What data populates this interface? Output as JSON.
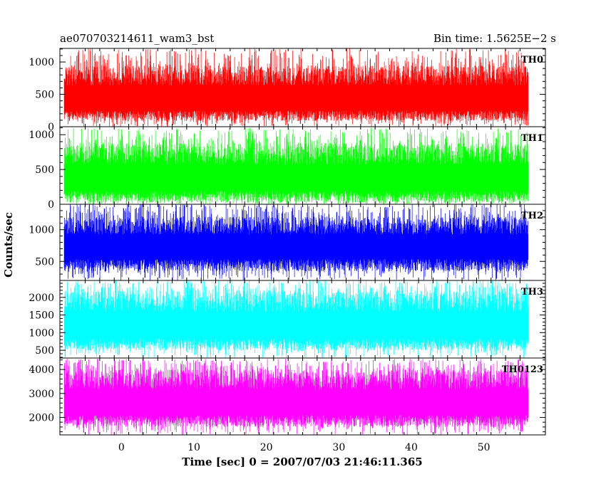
{
  "header": {
    "left": "ae070703214611_wam3_bst",
    "right": "Bin time: 1.5625E−2 s"
  },
  "chart_data": {
    "type": "line",
    "title": "ae070703214611_wam3_bst",
    "subtitle": "Bin time: 1.5625E−2 s",
    "xlabel": "Time [sec] 0 = 2007/07/03 21:46:11.365",
    "ylabel": "Counts/sec",
    "xlim": [
      -8.5,
      58.5
    ],
    "data_x_range": [
      -7.9,
      56.1
    ],
    "bin_time_s": 0.015625,
    "x_ticks": [
      0,
      10,
      20,
      30,
      40,
      50
    ],
    "x_tick_labels": [
      "0",
      "10",
      "20",
      "30",
      "40",
      "50"
    ],
    "grid": false,
    "panels": [
      {
        "name": "TH0",
        "color": "#ff0000",
        "ylim": [
          0,
          1210
        ],
        "baseline": 380,
        "low": 90,
        "high": 950,
        "peak": 1210,
        "y_ticks": [
          0,
          500,
          1000
        ],
        "y_tick_labels": [
          "0",
          "500",
          "1000"
        ]
      },
      {
        "name": "TH1",
        "color": "#00ff00",
        "ylim": [
          0,
          1115
        ],
        "baseline": 320,
        "low": 30,
        "high": 880,
        "peak": 1100,
        "y_ticks": [
          0,
          500,
          1000
        ],
        "y_tick_labels": [
          "0",
          "500",
          "1000"
        ]
      },
      {
        "name": "TH2",
        "color": "#0000ff",
        "ylim": [
          200,
          1400
        ],
        "baseline": 700,
        "low": 340,
        "high": 1200,
        "peak": 1420,
        "y_ticks": [
          500,
          1000
        ],
        "y_tick_labels": [
          "500",
          "1000"
        ]
      },
      {
        "name": "TH3",
        "color": "#00ffff",
        "ylim": [
          280,
          2480
        ],
        "baseline": 1100,
        "low": 500,
        "high": 2200,
        "peak": 2500,
        "y_ticks": [
          500,
          1000,
          1500,
          2000
        ],
        "y_tick_labels": [
          "500",
          "1000",
          "1500",
          "2000"
        ]
      },
      {
        "name": "TH0123",
        "color": "#ff00ff",
        "ylim": [
          1270,
          4480
        ],
        "baseline": 2500,
        "low": 1600,
        "high": 4000,
        "peak": 4450,
        "y_ticks": [
          2000,
          3000,
          4000
        ],
        "y_tick_labels": [
          "2000",
          "3000",
          "4000"
        ]
      }
    ]
  }
}
